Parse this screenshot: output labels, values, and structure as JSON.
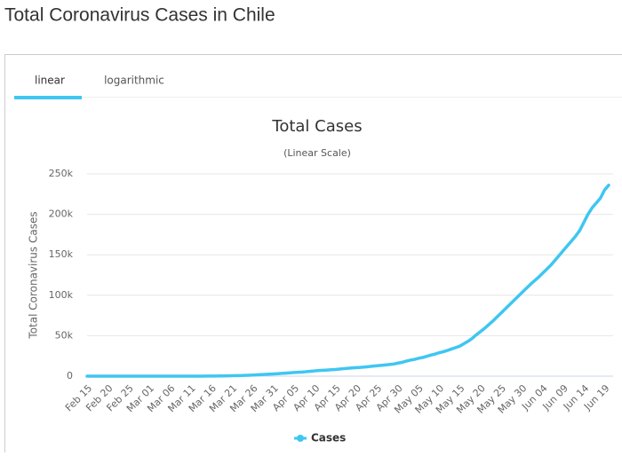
{
  "page": {
    "title": "Total Coronavirus Cases in Chile",
    "tabs": [
      "linear",
      "logarithmic"
    ]
  },
  "chart_data": {
    "type": "line",
    "title": "Total Cases",
    "subtitle": "(Linear Scale)",
    "y_label": "Total Coronavirus Cases",
    "categories": [
      "Feb 15",
      null,
      null,
      null,
      null,
      "Feb 20",
      null,
      null,
      null,
      null,
      "Feb 25",
      null,
      null,
      null,
      null,
      "Mar 01",
      null,
      null,
      null,
      null,
      "Mar 06",
      null,
      null,
      null,
      null,
      "Mar 11",
      null,
      null,
      null,
      null,
      "Mar 16",
      null,
      null,
      null,
      null,
      "Mar 21",
      null,
      null,
      null,
      null,
      "Mar 26",
      null,
      null,
      null,
      null,
      "Mar 31",
      null,
      null,
      null,
      null,
      "Apr 05",
      null,
      null,
      null,
      null,
      "Apr 10",
      null,
      null,
      null,
      null,
      "Apr 15",
      null,
      null,
      null,
      null,
      "Apr 20",
      null,
      null,
      null,
      null,
      "Apr 25",
      null,
      null,
      null,
      null,
      "Apr 30",
      null,
      null,
      null,
      null,
      "May 05",
      null,
      null,
      null,
      null,
      "May 10",
      null,
      null,
      null,
      null,
      "May 15",
      null,
      null,
      null,
      null,
      "May 20",
      null,
      null,
      null,
      null,
      "May 25",
      null,
      null,
      null,
      null,
      "May 30",
      null,
      null,
      null,
      null,
      "Jun 04",
      null,
      null,
      null,
      null,
      "Jun 09",
      null,
      null,
      null,
      null,
      "Jun 14",
      null,
      null,
      null,
      null,
      "Jun 19",
      null
    ],
    "series": [
      {
        "name": "Cases",
        "color": "#3fc6f2",
        "values": [
          0,
          0,
          0,
          0,
          0,
          0,
          0,
          0,
          0,
          0,
          0,
          0,
          0,
          0,
          0,
          0,
          0,
          1,
          3,
          4,
          5,
          7,
          10,
          13,
          17,
          23,
          33,
          43,
          61,
          75,
          156,
          201,
          238,
          342,
          434,
          537,
          632,
          746,
          922,
          1142,
          1306,
          1610,
          1909,
          2139,
          2449,
          2738,
          3031,
          3404,
          3737,
          4161,
          4471,
          4815,
          5116,
          5546,
          5972,
          6501,
          6927,
          7213,
          7525,
          7917,
          8273,
          8807,
          9252,
          9730,
          10088,
          10507,
          10832,
          11296,
          11812,
          12306,
          12858,
          13331,
          13813,
          14365,
          14885,
          16023,
          17000,
          18400,
          19700,
          20600,
          22000,
          23000,
          24500,
          26000,
          27200,
          28900,
          30100,
          31700,
          33500,
          35200,
          37000,
          40000,
          43000,
          46500,
          51000,
          55000,
          59000,
          63500,
          68000,
          73000,
          78000,
          83000,
          88000,
          93000,
          98000,
          103000,
          108000,
          113000,
          117500,
          122000,
          127000,
          132000,
          137000,
          143000,
          149000,
          155000,
          161000,
          167000,
          173000,
          180000,
          190000,
          200000,
          208000,
          214000,
          220000,
          230000,
          236000
        ]
      }
    ],
    "ylim": [
      0,
      250000
    ],
    "yticks": [
      0,
      {
        "value": 50000,
        "label": "50k"
      },
      {
        "value": 100000,
        "label": "100k"
      },
      {
        "value": 150000,
        "label": "150k"
      },
      {
        "value": 200000,
        "label": "200k"
      },
      {
        "value": 250000,
        "label": "250k"
      }
    ],
    "grid": true
  }
}
